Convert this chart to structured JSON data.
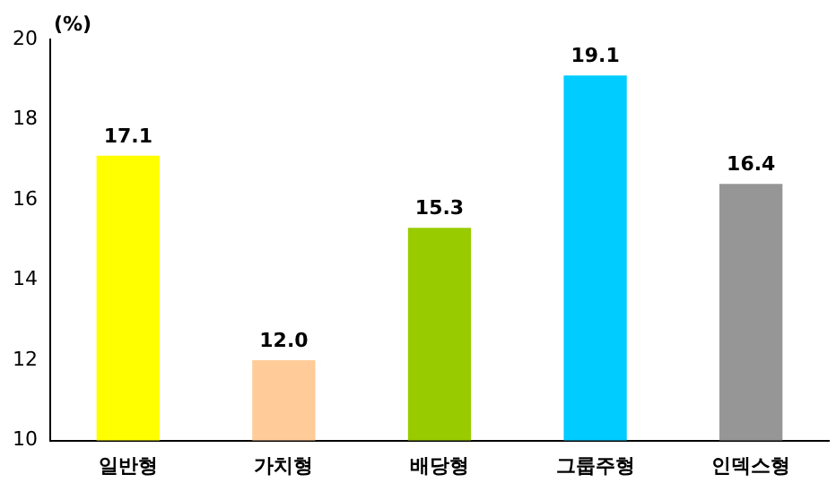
{
  "chart_data": {
    "type": "bar",
    "ylabel": "(%)",
    "categories": [
      "일반형",
      "가치형",
      "배당형",
      "그룹주형",
      "인덱스형"
    ],
    "values": [
      17.1,
      12.0,
      15.3,
      19.1,
      16.4
    ],
    "value_labels": [
      "17.1",
      "12.0",
      "15.3",
      "19.1",
      "16.4"
    ],
    "colors": [
      "#ffff00",
      "#ffcc99",
      "#99cc00",
      "#00ccff",
      "#969696"
    ],
    "ylim": [
      10,
      20
    ],
    "yticks": [
      10,
      12,
      14,
      16,
      18,
      20
    ],
    "grid": false
  }
}
